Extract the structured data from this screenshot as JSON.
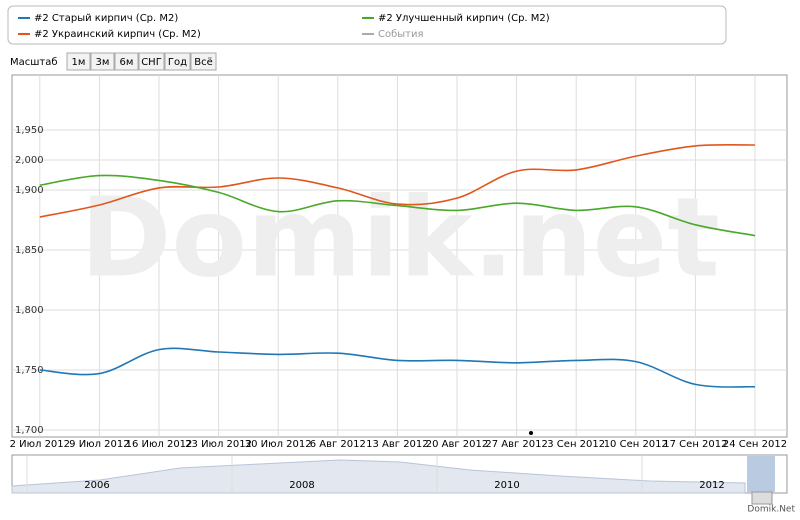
{
  "chart_data": {
    "type": "line",
    "watermark": "Domik.net",
    "zoom_label": "Масштаб",
    "zoom_buttons": [
      "1м",
      "3м",
      "6м",
      "СНГ",
      "Год",
      "Всё"
    ],
    "events_legend": {
      "name": "События",
      "color": "#aaaaaa"
    },
    "categories": [
      "2 Июл 2012",
      "9 Июл 2012",
      "16 Июл 2012",
      "23 Июл 2012",
      "30 Июл 2012",
      "6 Авг 2012",
      "13 Авг 2012",
      "20 Авг 2012",
      "27 Авг 2012",
      "3 Сен 2012",
      "10 Сен 2012",
      "17 Сен 2012",
      "24 Сен 2012"
    ],
    "series": [
      {
        "name": "#2 Старый кирпич (Ср. М2)",
        "color": "#1f78b4",
        "values": [
          1750,
          1747,
          1767,
          1765,
          1763,
          1764,
          1758,
          1758,
          1756,
          1758,
          1757,
          1738,
          1736
        ]
      },
      {
        "name": "#2 Украинский кирпич (Ср. М2)",
        "color": "#e0561b",
        "axis": "y2",
        "values": [
          1810,
          1850,
          1907,
          1910,
          1940,
          1907,
          1853,
          1873,
          1963,
          1967,
          2013,
          2047,
          2050
        ]
      },
      {
        "name": "#2 Улучшенный кирпич (Ср. М2)",
        "color": "#4aa82a",
        "values": [
          1904,
          1912,
          1908,
          1898,
          1882,
          1891,
          1887,
          1883,
          1889,
          1883,
          1886,
          1871,
          1862
        ]
      }
    ],
    "ylim": [
      1695,
      1990
    ],
    "yticks": [
      {
        "value": 1700,
        "label": "1,700"
      },
      {
        "value": 1750,
        "label": "1,750"
      },
      {
        "value": 1800,
        "label": "1,800"
      },
      {
        "value": 1850,
        "label": "1,850"
      },
      {
        "value": 1950,
        "label": "1,950"
      }
    ],
    "y2lim": [
      1080,
      2260
    ],
    "y2ticks": [
      {
        "value": 1900,
        "label": "1,900"
      },
      {
        "value": 2000,
        "label": "2,000"
      }
    ],
    "grid": true,
    "navigator_labels": [
      "2006",
      "2008",
      "2010",
      "2012"
    ],
    "credit": "Domik.Net"
  }
}
